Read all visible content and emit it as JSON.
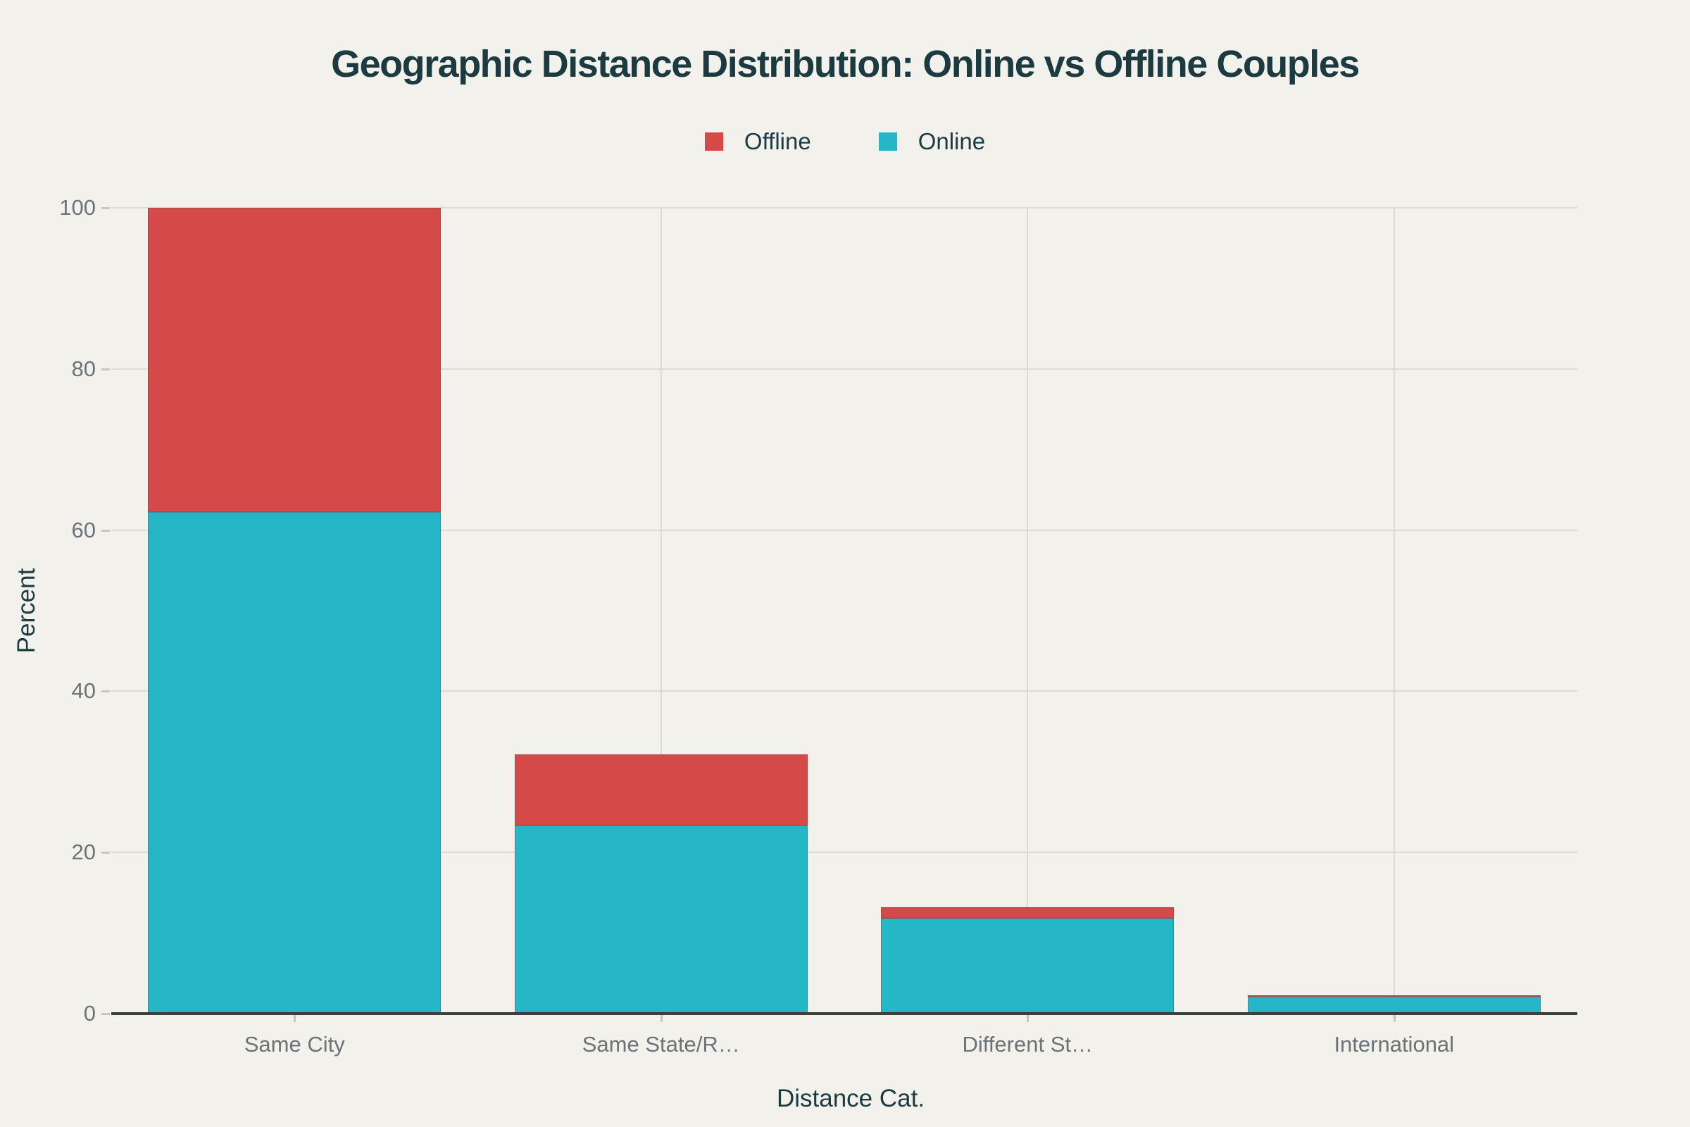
{
  "title": "Geographic Distance Distribution: Online vs Offline Couples",
  "colors": {
    "background": "#f2f1ec",
    "offline_red": "#d54a49",
    "online_teal": "#25b6c8",
    "title_text": "#1c3b41",
    "tick_text": "#6b7378",
    "gridline": "#dcd9d1",
    "axis_line": "#3b403c",
    "tick_mark": "#c9c6bf"
  },
  "legend": {
    "items": [
      {
        "label": "Offline",
        "color": "#d54a49"
      },
      {
        "label": "Online",
        "color": "#25b6c8"
      }
    ]
  },
  "chart_data": {
    "type": "bar",
    "stacked": true,
    "title": "Geographic Distance Distribution: Online vs Offline Couples",
    "xlabel": "Distance Cat.",
    "ylabel": "Percent",
    "categories": [
      "Same City",
      "Same State/R…",
      "Different St…",
      "International"
    ],
    "series": [
      {
        "name": "Online",
        "color": "#25b6c8",
        "values": [
          62.2,
          23.3,
          11.8,
          2.1
        ]
      },
      {
        "name": "Offline",
        "color": "#d54a49",
        "values": [
          37.8,
          8.9,
          1.4,
          0.2
        ]
      }
    ],
    "stack_totals": [
      100.0,
      32.2,
      13.2,
      2.3
    ],
    "ylim": [
      0,
      100
    ],
    "yticks": [
      0,
      20,
      40,
      60,
      80,
      100
    ],
    "grid": true,
    "legend_position": "top-center",
    "bar_width_fraction": 0.8
  }
}
